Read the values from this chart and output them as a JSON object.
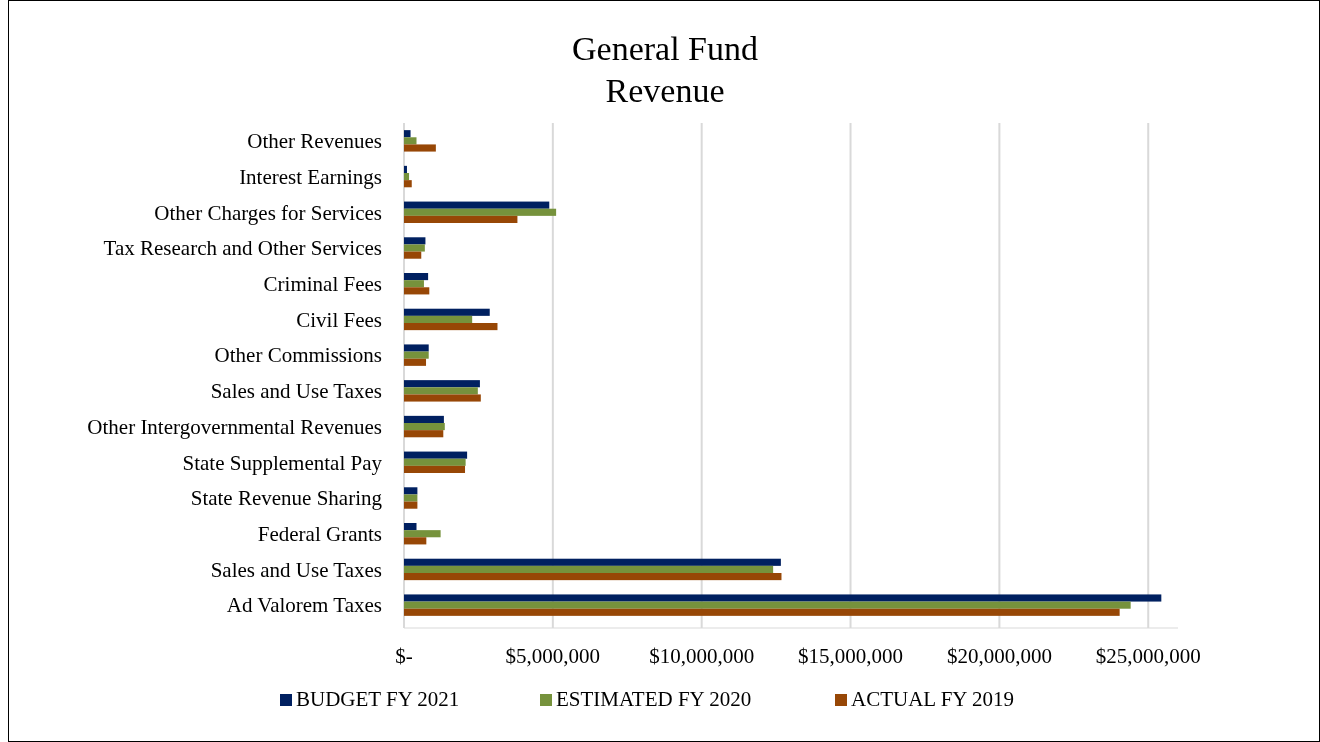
{
  "chart_data": {
    "type": "bar",
    "orientation": "horizontal",
    "title": "General Fund\nRevenue",
    "categories": [
      "Other Revenues",
      "Interest Earnings",
      "Other Charges for Services",
      "Tax Research and Other Services",
      "Criminal Fees",
      "Civil Fees",
      "Other Commissions",
      "Sales and Use Taxes",
      "Other Intergovernmental Revenues",
      "State Supplemental Pay",
      "State Revenue Sharing",
      "Federal Grants",
      "Sales and Use Taxes",
      "Ad Valorem Taxes"
    ],
    "series": [
      {
        "name": "BUDGET FY 2021",
        "color": "#002060",
        "values": [
          220000,
          100000,
          4880000,
          720000,
          810000,
          2880000,
          830000,
          2550000,
          1340000,
          2120000,
          450000,
          420000,
          12660000,
          25440000
        ]
      },
      {
        "name": "ESTIMATED FY 2020",
        "color": "#76923c",
        "values": [
          420000,
          170000,
          5110000,
          700000,
          670000,
          2290000,
          830000,
          2480000,
          1370000,
          2070000,
          450000,
          1230000,
          12400000,
          24410000
        ]
      },
      {
        "name": "ACTUAL FY 2019",
        "color": "#974706",
        "values": [
          1070000,
          260000,
          3810000,
          580000,
          850000,
          3140000,
          740000,
          2580000,
          1320000,
          2050000,
          450000,
          750000,
          12680000,
          24040000
        ]
      }
    ],
    "xlim": [
      0,
      26000000
    ],
    "xticks": [
      {
        "value": 0,
        "label": "$-"
      },
      {
        "value": 5000000,
        "label": "$5,000,000"
      },
      {
        "value": 10000000,
        "label": "$10,000,000"
      },
      {
        "value": 15000000,
        "label": "$15,000,000"
      },
      {
        "value": 20000000,
        "label": "$20,000,000"
      },
      {
        "value": 25000000,
        "label": "$25,000,000"
      }
    ],
    "grid": "x",
    "legend": "bottom"
  }
}
